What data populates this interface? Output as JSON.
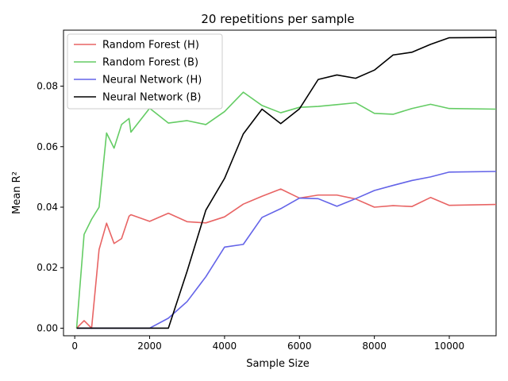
{
  "chart_data": {
    "type": "line",
    "title": "20 repetitions per sample",
    "xlabel": "Sample Size",
    "ylabel": "Mean R²",
    "xlim": [
      -300,
      11250
    ],
    "ylim": [
      -0.0025,
      0.0985
    ],
    "xticks": [
      0,
      2000,
      4000,
      6000,
      8000,
      10000
    ],
    "yticks": [
      0.0,
      0.02,
      0.04,
      0.06,
      0.08
    ],
    "xtick_labels": [
      "0",
      "2000",
      "4000",
      "6000",
      "8000",
      "10000"
    ],
    "ytick_labels": [
      "0.00",
      "0.02",
      "0.04",
      "0.06",
      "0.08"
    ],
    "grid": false,
    "legend_position": "top-left",
    "series": [
      {
        "name": "Random Forest (H)",
        "color": "#e86464",
        "x": [
          50,
          250,
          450,
          650,
          850,
          1050,
          1250,
          1450,
          1500,
          2000,
          2500,
          3000,
          3500,
          4000,
          4500,
          5000,
          5500,
          6000,
          6500,
          7000,
          7500,
          8000,
          8500,
          9000,
          9500,
          10000,
          11250
        ],
        "y": [
          0.0,
          0.0025,
          0.0,
          0.026,
          0.0347,
          0.028,
          0.0296,
          0.037,
          0.0375,
          0.0353,
          0.038,
          0.0352,
          0.0348,
          0.0368,
          0.041,
          0.0436,
          0.046,
          0.043,
          0.044,
          0.044,
          0.0427,
          0.04,
          0.0405,
          0.0402,
          0.0432,
          0.0406,
          0.0409
        ]
      },
      {
        "name": "Random Forest (B)",
        "color": "#64cc64",
        "x": [
          50,
          250,
          450,
          650,
          850,
          1050,
          1250,
          1450,
          1500,
          2000,
          2500,
          3000,
          3500,
          4000,
          4500,
          5000,
          5500,
          6000,
          6500,
          7000,
          7500,
          8000,
          8500,
          9000,
          9500,
          10000,
          11250
        ],
        "y": [
          0.0,
          0.031,
          0.036,
          0.04,
          0.0645,
          0.0595,
          0.0673,
          0.0693,
          0.0648,
          0.0727,
          0.0678,
          0.0686,
          0.0673,
          0.0716,
          0.078,
          0.0736,
          0.0712,
          0.073,
          0.0733,
          0.0739,
          0.0745,
          0.071,
          0.0707,
          0.0726,
          0.074,
          0.0726,
          0.0724
        ]
      },
      {
        "name": "Neural Network (H)",
        "color": "#6464e8",
        "x": [
          50,
          250,
          450,
          650,
          850,
          1050,
          1250,
          1450,
          2000,
          2500,
          3000,
          3500,
          4000,
          4500,
          5000,
          5500,
          6000,
          6500,
          7000,
          7500,
          8000,
          8500,
          9000,
          9500,
          10000,
          11250
        ],
        "y": [
          0.0,
          0.0,
          0.0,
          0.0,
          0.0,
          0.0,
          0.0,
          0.0,
          0.0,
          0.0033,
          0.0088,
          0.017,
          0.0268,
          0.0277,
          0.0366,
          0.0395,
          0.043,
          0.0428,
          0.0403,
          0.0428,
          0.0455,
          0.0472,
          0.0488,
          0.05,
          0.0516,
          0.0518
        ]
      },
      {
        "name": "Neural Network (B)",
        "color": "#000000",
        "x": [
          50,
          250,
          450,
          650,
          850,
          1050,
          1250,
          1450,
          2000,
          2500,
          3000,
          3500,
          4000,
          4500,
          5000,
          5500,
          6000,
          6500,
          7000,
          7500,
          8000,
          8500,
          9000,
          9500,
          10000,
          11250
        ],
        "y": [
          0.0,
          0.0,
          0.0,
          0.0,
          0.0,
          0.0,
          0.0,
          0.0,
          0.0,
          0.0,
          0.0188,
          0.039,
          0.0495,
          0.0642,
          0.0724,
          0.0676,
          0.0725,
          0.0822,
          0.0837,
          0.0826,
          0.0853,
          0.0903,
          0.0912,
          0.0938,
          0.096,
          0.0961
        ]
      }
    ]
  }
}
